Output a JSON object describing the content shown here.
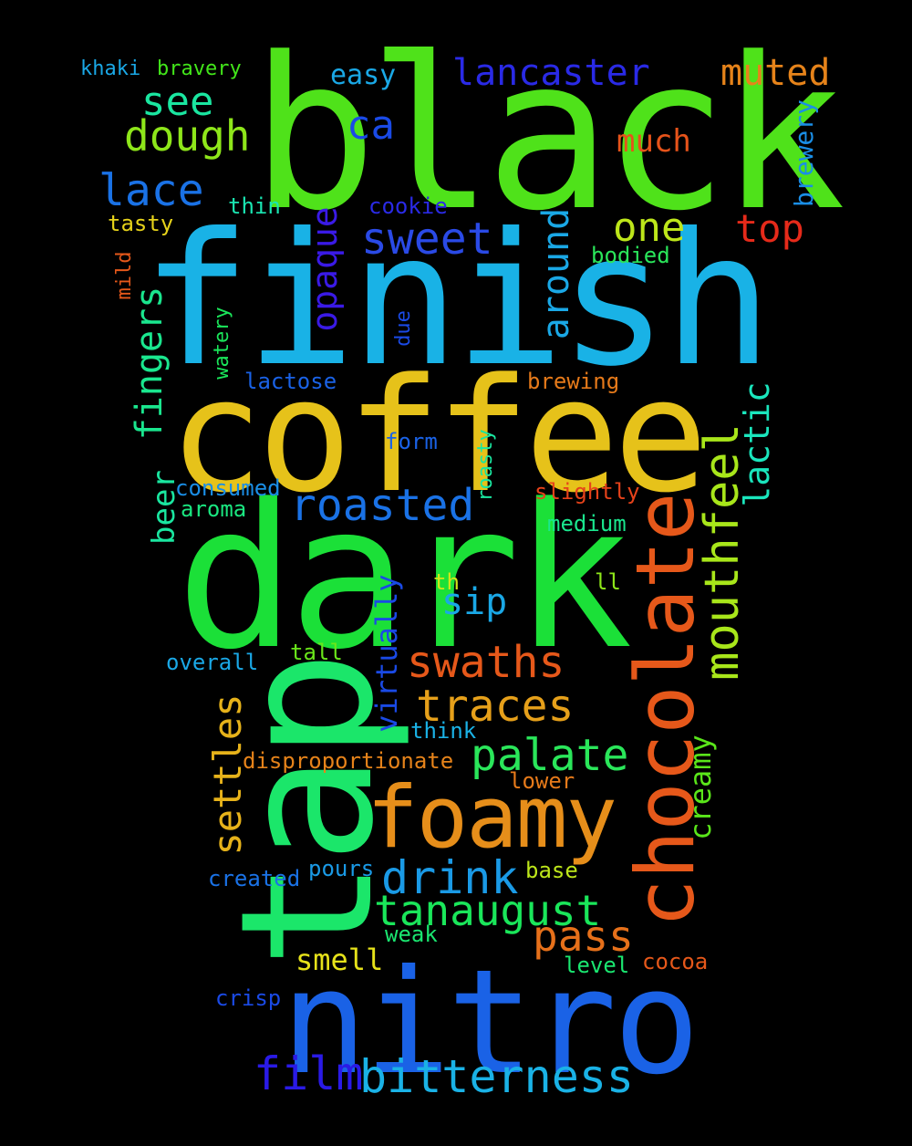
{
  "words": {
    "black": {
      "text": "black",
      "color": "#4fe21a"
    },
    "finish": {
      "text": "finish",
      "color": "#19b2e6"
    },
    "coffee": {
      "text": "coffee",
      "color": "#e6c21a"
    },
    "dark": {
      "text": "dark",
      "color": "#1be038"
    },
    "tap": {
      "text": "tap",
      "color": "#1be66a"
    },
    "nitro": {
      "text": "nitro",
      "color": "#1a62e6"
    },
    "chocolate": {
      "text": "chocolate",
      "color": "#e6581a"
    },
    "foamy": {
      "text": "foamy",
      "color": "#e68e1a"
    },
    "mouthfeel": {
      "text": "mouthfeel",
      "color": "#a8e61a"
    },
    "lancaster": {
      "text": "lancaster",
      "color": "#2a2ae6"
    },
    "muted": {
      "text": "muted",
      "color": "#e6831a"
    },
    "see": {
      "text": "see",
      "color": "#1ae6a0"
    },
    "dough": {
      "text": "dough",
      "color": "#8ee61a"
    },
    "lace": {
      "text": "lace",
      "color": "#1a72e6"
    },
    "ca": {
      "text": "ca",
      "color": "#1a4ae6"
    },
    "much": {
      "text": "much",
      "color": "#e6531a"
    },
    "easy": {
      "text": "easy",
      "color": "#1aa8e6"
    },
    "khaki": {
      "text": "khaki",
      "color": "#1aa8e6"
    },
    "bravery": {
      "text": "bravery",
      "color": "#42e61a"
    },
    "brewery": {
      "text": "brewery",
      "color": "#1a8ee6"
    },
    "top": {
      "text": "top",
      "color": "#e62a1a"
    },
    "one": {
      "text": "one",
      "color": "#bde61a"
    },
    "sweet": {
      "text": "sweet",
      "color": "#2a4ae6"
    },
    "thin": {
      "text": "thin",
      "color": "#1ae6b2"
    },
    "cookie": {
      "text": "cookie",
      "color": "#2a2ae6"
    },
    "tasty": {
      "text": "tasty",
      "color": "#e6d21a"
    },
    "opaque": {
      "text": "opaque",
      "color": "#3a1ae6"
    },
    "around": {
      "text": "around",
      "color": "#1aa8e6"
    },
    "bodied": {
      "text": "bodied",
      "color": "#2ae65a"
    },
    "mild": {
      "text": "mild",
      "color": "#e6581a"
    },
    "fingers": {
      "text": "fingers",
      "color": "#1ae68e"
    },
    "watery": {
      "text": "watery",
      "color": "#1ae65a"
    },
    "due": {
      "text": "due",
      "color": "#1a4ae6"
    },
    "lactose": {
      "text": "lactose",
      "color": "#1a62e6"
    },
    "brewing": {
      "text": "brewing",
      "color": "#e67a1a"
    },
    "lactic": {
      "text": "lactic",
      "color": "#1ae6bd"
    },
    "form": {
      "text": "form",
      "color": "#1a62e6"
    },
    "beer": {
      "text": "beer",
      "color": "#1ae6a0"
    },
    "consumed": {
      "text": "consumed",
      "color": "#1a8ee6"
    },
    "roasty": {
      "text": "roasty",
      "color": "#1ae6a0"
    },
    "aroma": {
      "text": "aroma",
      "color": "#1ae680"
    },
    "roasted": {
      "text": "roasted",
      "color": "#1a72e6"
    },
    "slightly": {
      "text": "slightly",
      "color": "#e6421a"
    },
    "medium": {
      "text": "medium",
      "color": "#1ae68e"
    },
    "sip": {
      "text": "sip",
      "color": "#1aa8e6"
    },
    "th": {
      "text": "th",
      "color": "#d2e61a"
    },
    "ll": {
      "text": "ll",
      "color": "#8ee61a"
    },
    "virtually": {
      "text": "virtually",
      "color": "#1a4ae6"
    },
    "overall": {
      "text": "overall",
      "color": "#1aa8e6"
    },
    "tall": {
      "text": "tall",
      "color": "#6ae61a"
    },
    "swaths": {
      "text": "swaths",
      "color": "#e6581a"
    },
    "traces": {
      "text": "traces",
      "color": "#e6a01a"
    },
    "settles": {
      "text": "settles",
      "color": "#e6b21a"
    },
    "think": {
      "text": "think",
      "color": "#1ab2e6"
    },
    "palate": {
      "text": "palate",
      "color": "#2ae65a"
    },
    "disproportionate": {
      "text": "disproportionate",
      "color": "#e6831a"
    },
    "lower": {
      "text": "lower",
      "color": "#e67a1a"
    },
    "creamy": {
      "text": "creamy",
      "color": "#5ae61a"
    },
    "drink": {
      "text": "drink",
      "color": "#1a9ae6"
    },
    "created": {
      "text": "created",
      "color": "#1a72e6"
    },
    "pours": {
      "text": "pours",
      "color": "#1a9ae6"
    },
    "base": {
      "text": "base",
      "color": "#bde61a"
    },
    "tanaugust": {
      "text": "tanaugust",
      "color": "#1ae65a"
    },
    "pass": {
      "text": "pass",
      "color": "#e6701a"
    },
    "weak": {
      "text": "weak",
      "color": "#1ae670"
    },
    "smell": {
      "text": "smell",
      "color": "#e6e21a"
    },
    "level": {
      "text": "level",
      "color": "#1ae670"
    },
    "cocoa": {
      "text": "cocoa",
      "color": "#e6581a"
    },
    "crisp": {
      "text": "crisp",
      "color": "#1a4ae6"
    },
    "film": {
      "text": "film",
      "color": "#2a1ae6"
    },
    "bitterness": {
      "text": "bitterness",
      "color": "#1ab2e6"
    }
  }
}
